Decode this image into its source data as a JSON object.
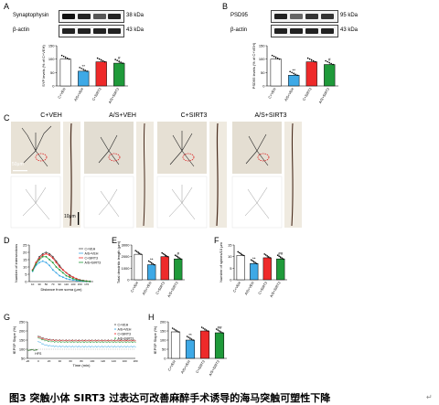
{
  "panels": {
    "A": {
      "letter": "A",
      "blot_labels": [
        "Synaptophysin",
        "β-actin"
      ],
      "kda_labels": [
        "38 kDa",
        "43 kDa"
      ]
    },
    "B": {
      "letter": "B",
      "blot_labels": [
        "PSD95",
        "β-actin"
      ],
      "kda_labels": [
        "95 kDa",
        "43 kDa"
      ]
    },
    "C": {
      "letter": "C",
      "titles": [
        "C+VEH",
        "A/S+VEH",
        "C+SIRT3",
        "A/S+SIRT3"
      ],
      "scale_bar": "50μm",
      "scale_bar_small": "10μm"
    },
    "D": {
      "letter": "D"
    },
    "E": {
      "letter": "E"
    },
    "F": {
      "letter": "F"
    },
    "G": {
      "letter": "G"
    },
    "H": {
      "letter": "H"
    }
  },
  "chart_data": [
    {
      "panel": "A",
      "type": "bar",
      "ylabel": "SYP levels (% of C+VEH)",
      "categories": [
        "C+VEH",
        "A/S+VEH",
        "C+SIRT3",
        "A/S+SIRT3"
      ],
      "values": [
        100,
        55,
        90,
        85
      ],
      "colors": [
        "#ffffff",
        "#3ea9e6",
        "#ee2a2a",
        "#1f9a3a"
      ],
      "ylim": [
        0,
        150
      ],
      "yticks": [
        0,
        50,
        100,
        150
      ],
      "significance": [
        "",
        "**",
        "",
        "#"
      ]
    },
    {
      "panel": "B",
      "type": "bar",
      "ylabel": "PSD95 levels (% of C+VEH)",
      "categories": [
        "C+VEH",
        "A/S+VEH",
        "C+SIRT3",
        "A/S+SIRT3"
      ],
      "values": [
        100,
        40,
        90,
        80
      ],
      "colors": [
        "#ffffff",
        "#3ea9e6",
        "#ee2a2a",
        "#1f9a3a"
      ],
      "ylim": [
        0,
        150
      ],
      "yticks": [
        0,
        50,
        100,
        150
      ],
      "significance": [
        "",
        "**",
        "",
        "#"
      ]
    },
    {
      "panel": "D",
      "type": "line",
      "xlabel": "Distance from soma (μm)",
      "ylabel": "Number of intersections",
      "ylim": [
        0,
        25
      ],
      "yticks": [
        0,
        5,
        10,
        15,
        20,
        25
      ],
      "x": [
        10,
        20,
        30,
        40,
        50,
        60,
        70,
        80,
        90,
        100,
        110,
        120,
        130,
        140,
        150,
        160,
        170,
        180
      ],
      "legend_position": "top-right",
      "series": [
        {
          "name": "C+VEH",
          "color": "#555555",
          "values": [
            8,
            13,
            17,
            19,
            20,
            19,
            17,
            14,
            11,
            8,
            6,
            4.5,
            3,
            2,
            1.2,
            0.8,
            0.4,
            0.2
          ]
        },
        {
          "name": "A/S+VEH",
          "color": "#3ea9e6",
          "values": [
            7,
            11,
            13,
            14,
            13,
            11,
            8,
            6,
            4,
            3,
            2,
            1.5,
            1,
            0.6,
            0.4,
            0.2,
            0.1,
            0
          ]
        },
        {
          "name": "C+SIRT3",
          "color": "#ee2a2a",
          "values": [
            8,
            13,
            16,
            18,
            19,
            18,
            16,
            13,
            10,
            8,
            6,
            4,
            3,
            2,
            1,
            0.6,
            0.3,
            0.1
          ]
        },
        {
          "name": "A/S+SIRT3",
          "color": "#1f9a3a",
          "values": [
            7.5,
            12,
            15,
            17,
            17,
            15,
            13,
            10,
            8,
            6,
            4,
            3,
            2,
            1.3,
            0.8,
            0.5,
            0.2,
            0.1
          ]
        }
      ]
    },
    {
      "panel": "E",
      "type": "bar",
      "ylabel": "Total dendritic length (μm)",
      "categories": [
        "C+VEH",
        "A/S+VEH",
        "C+SIRT3",
        "A/S+SIRT3"
      ],
      "values": [
        2200,
        1300,
        2000,
        1800
      ],
      "colors": [
        "#ffffff",
        "#3ea9e6",
        "#ee2a2a",
        "#1f9a3a"
      ],
      "ylim": [
        0,
        3000
      ],
      "yticks": [
        0,
        1000,
        2000,
        3000
      ],
      "significance": [
        "",
        "**",
        "",
        "#"
      ]
    },
    {
      "panel": "F",
      "type": "bar",
      "ylabel": "Number of spines/10 μm",
      "categories": [
        "C+VEH",
        "A/S+VEH",
        "C+SIRT3",
        "A/S+SIRT3"
      ],
      "values": [
        10.5,
        7,
        9.5,
        9
      ],
      "colors": [
        "#ffffff",
        "#3ea9e6",
        "#ee2a2a",
        "#1f9a3a"
      ],
      "ylim": [
        0,
        15
      ],
      "yticks": [
        0,
        5,
        10,
        15
      ],
      "significance": [
        "",
        "**",
        "",
        "##"
      ]
    },
    {
      "panel": "G",
      "type": "line",
      "xlabel": "Time (min)",
      "ylabel": "fEPSP Slope (%)",
      "ylim": [
        50,
        250
      ],
      "yticks": [
        50,
        100,
        150,
        200,
        250
      ],
      "xlim": [
        -20,
        180
      ],
      "xticks": [
        -20,
        0,
        20,
        40,
        60,
        80,
        100,
        120,
        140,
        160,
        180
      ],
      "annotation": "HFS",
      "legend_position": "top-right",
      "series": [
        {
          "name": "C+VEH",
          "color": "#555555",
          "baseline": 100,
          "peak": 175,
          "plateau": 150
        },
        {
          "name": "A/S+VEH",
          "color": "#3ea9e6",
          "baseline": 100,
          "peak": 145,
          "plateau": 115
        },
        {
          "name": "C+SIRT3",
          "color": "#ee2a2a",
          "baseline": 100,
          "peak": 170,
          "plateau": 148
        },
        {
          "name": "A/S+SIRT3",
          "color": "#1f9a3a",
          "baseline": 100,
          "peak": 165,
          "plateau": 140
        }
      ]
    },
    {
      "panel": "H",
      "type": "bar",
      "ylabel": "fEPSP Slope (%)",
      "categories": [
        "C+VEH",
        "A/S+VEH",
        "C+SIRT3",
        "A/S+SIRT3"
      ],
      "values": [
        145,
        100,
        150,
        140
      ],
      "colors": [
        "#ffffff",
        "#3ea9e6",
        "#ee2a2a",
        "#1f9a3a"
      ],
      "ylim": [
        0,
        200
      ],
      "yticks": [
        0,
        50,
        100,
        150,
        200
      ],
      "significance": [
        "",
        "**",
        "",
        "##"
      ]
    }
  ],
  "caption": "图3  突触小体 SIRT3 过表达可改善麻醉手术诱导的海马突触可塑性下降"
}
